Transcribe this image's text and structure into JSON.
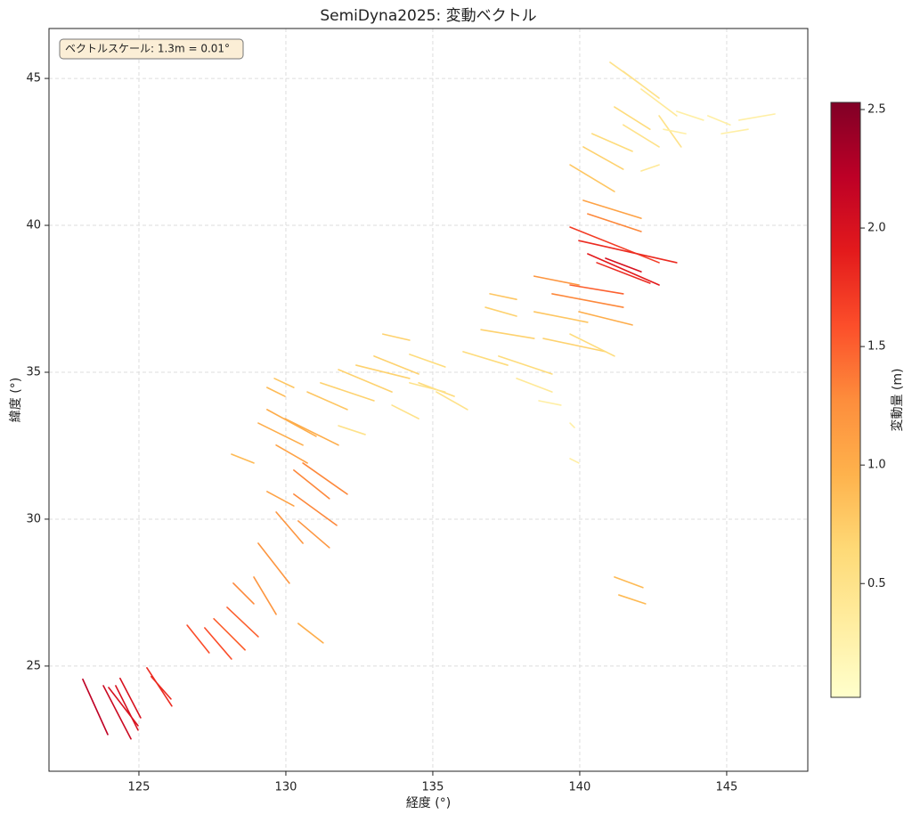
{
  "chart_data": {
    "type": "vector",
    "title": "SemiDyna2025: 変動ベクトル",
    "xlabel": "経度 (°)",
    "ylabel": "緯度 (°)",
    "annotation": "ベクトルスケール: 1.3m = 0.01°",
    "xlim": [
      121.94,
      147.76
    ],
    "xticks": [
      125,
      130,
      135,
      140,
      145
    ],
    "ylim": [
      21.42,
      46.7
    ],
    "yticks": [
      25,
      30,
      35,
      40,
      45
    ],
    "grid": true,
    "colormap": [
      "#ffffcc",
      "#ffeda0",
      "#fed976",
      "#feb24c",
      "#fd8d3c",
      "#fc4e2a",
      "#e31a1c",
      "#bd0026",
      "#800026"
    ],
    "colorbar_label": "変動量 (m)",
    "clim": [
      0.02,
      2.53
    ],
    "cticks": [
      0.5,
      {
        "value": 1,
        "label": "1.0"
      },
      1.5,
      {
        "value": 2,
        "label": "2.0"
      },
      2.5
    ],
    "vectors": {
      "x0": [
        123.09,
        123.79,
        123.97,
        124.21,
        124.36,
        125.27,
        125.42,
        126.64,
        127.24,
        127.55,
        128.0,
        128.21,
        128.91,
        129.06,
        130.42,
        130.42,
        129.67,
        129.36,
        130.27,
        130.58,
        130.27,
        129.67,
        129.06,
        129.36,
        128.15,
        129.36,
        129.97,
        130.73,
        129.61,
        131.18,
        131.79,
        132.39,
        133.3,
        133.0,
        134.21,
        134.52,
        133.61,
        135.12,
        136.03,
        136.94,
        136.79,
        136.64,
        137.24,
        137.85,
        138.45,
        138.76,
        139.67,
        138.45,
        139.06,
        139.67,
        139.97,
        139.67,
        139.97,
        140.27,
        140.88,
        140.58,
        140.27,
        140.12,
        139.67,
        140.12,
        140.42,
        141.18,
        141.03,
        141.48,
        142.09,
        142.7,
        141.48,
        143.3,
        144.36,
        145.42,
        144.82,
        142.85,
        142.09,
        141.18,
        141.33,
        139.67,
        139.67,
        138.61,
        134.21,
        131.79
      ],
      "y0": [
        24.55,
        24.33,
        24.27,
        24.33,
        24.58,
        24.94,
        24.64,
        26.39,
        26.3,
        26.61,
        27.0,
        27.82,
        28.03,
        29.18,
        26.45,
        29.94,
        30.24,
        30.94,
        30.85,
        31.91,
        31.67,
        32.52,
        33.27,
        33.73,
        32.21,
        34.48,
        33.42,
        34.33,
        34.79,
        34.64,
        35.09,
        35.24,
        36.3,
        35.55,
        35.61,
        34.64,
        33.88,
        34.33,
        35.7,
        37.67,
        37.21,
        36.45,
        35.55,
        34.79,
        37.06,
        36.15,
        36.3,
        38.27,
        37.67,
        37.97,
        37.06,
        39.94,
        39.48,
        39.03,
        38.88,
        38.73,
        40.39,
        40.85,
        42.06,
        42.67,
        43.12,
        44.03,
        45.55,
        45.24,
        44.64,
        43.73,
        43.42,
        43.88,
        43.73,
        43.58,
        43.12,
        43.27,
        41.85,
        28.03,
        27.42,
        32.06,
        33.27,
        34.03,
        34.64,
        33.18
      ],
      "x1": [
        123.94,
        124.73,
        124.97,
        124.97,
        125.06,
        126.12,
        126.09,
        127.39,
        128.15,
        128.61,
        129.06,
        128.91,
        129.67,
        130.12,
        131.27,
        131.48,
        130.58,
        130.27,
        131.73,
        132.09,
        131.48,
        130.73,
        130.58,
        131.03,
        128.91,
        129.97,
        131.79,
        132.09,
        130.27,
        133.0,
        133.61,
        134.21,
        134.21,
        134.52,
        135.42,
        135.73,
        134.52,
        136.18,
        137.55,
        137.85,
        137.85,
        138.45,
        139.06,
        139.06,
        140.27,
        140.88,
        141.18,
        139.97,
        141.48,
        141.48,
        141.79,
        142.7,
        143.3,
        142.7,
        142.09,
        142.39,
        142.09,
        142.09,
        141.18,
        141.48,
        141.79,
        142.39,
        142.09,
        142.7,
        143.3,
        143.45,
        142.7,
        144.21,
        145.12,
        146.64,
        145.73,
        143.61,
        142.7,
        142.15,
        142.24,
        139.97,
        139.82,
        139.36,
        135.42,
        132.7
      ],
      "y1": [
        22.67,
        22.52,
        22.97,
        22.82,
        23.24,
        23.64,
        23.88,
        25.45,
        25.24,
        25.55,
        26.0,
        27.12,
        26.76,
        27.82,
        25.79,
        29.03,
        29.18,
        30.45,
        29.79,
        30.85,
        30.7,
        31.91,
        32.52,
        32.82,
        31.91,
        34.18,
        32.52,
        33.73,
        34.48,
        34.03,
        34.33,
        34.79,
        36.09,
        34.94,
        35.18,
        34.18,
        33.42,
        33.73,
        35.24,
        37.48,
        36.91,
        36.15,
        34.94,
        34.33,
        36.7,
        35.7,
        35.55,
        37.97,
        37.21,
        37.67,
        36.61,
        38.73,
        38.73,
        37.97,
        38.42,
        38.03,
        39.79,
        40.24,
        41.15,
        41.91,
        42.52,
        43.27,
        44.79,
        44.33,
        43.73,
        42.67,
        42.67,
        43.58,
        43.42,
        43.79,
        43.27,
        43.12,
        42.06,
        27.67,
        27.12,
        31.91,
        33.12,
        33.88,
        34.33,
        32.88
      ],
      "magnitude": [
        2.2,
        2.1,
        2.0,
        2.0,
        2.0,
        1.8,
        1.8,
        1.6,
        1.6,
        1.5,
        1.5,
        1.3,
        1.2,
        1.2,
        1.0,
        1.2,
        1.2,
        1.1,
        1.3,
        1.3,
        1.3,
        1.1,
        1.0,
        1.0,
        0.9,
        0.9,
        1.0,
        0.8,
        0.8,
        0.7,
        0.7,
        0.7,
        0.7,
        0.7,
        0.6,
        0.6,
        0.5,
        0.5,
        0.6,
        0.8,
        0.7,
        0.7,
        0.6,
        0.4,
        0.8,
        0.7,
        0.6,
        1.2,
        1.3,
        1.5,
        1.0,
        1.7,
        1.8,
        1.9,
        2.0,
        1.8,
        1.3,
        1.1,
        0.8,
        0.7,
        0.6,
        0.6,
        0.5,
        0.5,
        0.4,
        0.5,
        0.5,
        0.3,
        0.3,
        0.3,
        0.3,
        0.3,
        0.4,
        0.9,
        0.9,
        0.3,
        0.3,
        0.3,
        0.5,
        0.5
      ]
    }
  }
}
